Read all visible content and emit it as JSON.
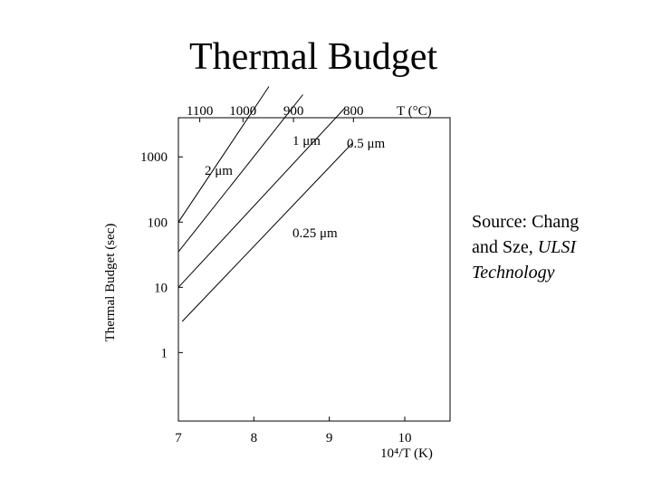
{
  "slide": {
    "title": "Thermal Budget",
    "source": {
      "line1": "Source: Chang",
      "line2_prefix": "and Sze,",
      "line2_italic": "ULSI",
      "line3_italic": "Technology"
    }
  },
  "chart_data": {
    "type": "line",
    "title": "",
    "xlabel": "10⁴/T (K)",
    "ylabel": "Thermal Budget (sec)",
    "top_axis_label": "T (°C)",
    "xlim": [
      7,
      10.6
    ],
    "ylim_log10": [
      -1.05,
      3.6
    ],
    "y_scale": "log",
    "grid": false,
    "x_ticks": [
      7,
      8,
      9,
      10
    ],
    "x_tick_labels": [
      "7",
      "8",
      "9",
      "10"
    ],
    "y_ticks": [
      1,
      10,
      100,
      1000
    ],
    "y_tick_labels": [
      "1",
      "10",
      "100",
      "1000"
    ],
    "top_ticks_celsius": [
      1100,
      1000,
      900,
      800
    ],
    "top_tick_labels": [
      "1100",
      "1000",
      "900",
      "800"
    ],
    "series": [
      {
        "name": "2 μm",
        "x": [
          7.0,
          8.2
        ],
        "y": [
          100,
          12000
        ]
      },
      {
        "name": "1 μm",
        "x": [
          7.0,
          8.65
        ],
        "y": [
          35,
          9000
        ]
      },
      {
        "name": "0.5 μm",
        "x": [
          7.0,
          9.2
        ],
        "y": [
          10,
          5500
        ]
      },
      {
        "name": "0.25 μm",
        "x": [
          7.05,
          9.3
        ],
        "y": [
          3,
          1600
        ]
      }
    ]
  }
}
